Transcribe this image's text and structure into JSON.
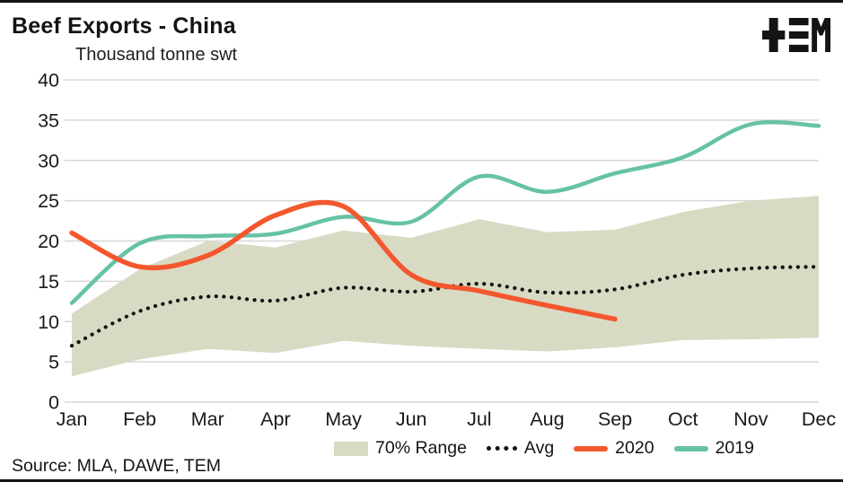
{
  "header": {
    "title": "Beef Exports - China",
    "subtitle": "Thousand tonne swt",
    "logo": "TEM"
  },
  "footer": {
    "source": "Source: MLA, DAWE, TEM"
  },
  "chart_data": {
    "type": "line",
    "title": "Beef Exports - China",
    "ylabel": "Thousand tonne swt",
    "categories": [
      "Jan",
      "Feb",
      "Mar",
      "Apr",
      "May",
      "Jun",
      "Jul",
      "Aug",
      "Sep",
      "Oct",
      "Nov",
      "Dec"
    ],
    "ylim": [
      0,
      40
    ],
    "yticks": [
      0,
      5,
      10,
      15,
      20,
      25,
      30,
      35,
      40
    ],
    "grid": true,
    "legend_position": "bottom",
    "colors": {
      "band": "#d9dac4",
      "avg": "#111111",
      "y2020": "#f4572e",
      "y2019": "#66c2a5",
      "gridline": "#d7d7d7"
    },
    "series": [
      {
        "name": "70% Range",
        "type": "band",
        "color": "#d9dac4",
        "upper": [
          11.0,
          16.5,
          20.0,
          19.2,
          21.3,
          20.4,
          22.7,
          21.1,
          21.4,
          23.6,
          25.0,
          25.6
        ],
        "lower": [
          3.2,
          5.3,
          6.6,
          6.1,
          7.6,
          7.0,
          6.6,
          6.3,
          6.8,
          7.7,
          7.8,
          8.0
        ]
      },
      {
        "name": "Avg",
        "type": "line",
        "style": "dotted",
        "color": "#111111",
        "values": [
          7.0,
          11.3,
          13.1,
          12.6,
          14.2,
          13.7,
          14.7,
          13.6,
          14.0,
          15.8,
          16.6,
          16.8
        ]
      },
      {
        "name": "2019",
        "type": "line",
        "style": "solid",
        "color": "#66c2a5",
        "values": [
          12.3,
          19.7,
          20.6,
          20.9,
          23.0,
          22.4,
          28.0,
          26.1,
          28.4,
          30.4,
          34.5,
          34.3
        ]
      },
      {
        "name": "2020",
        "type": "line",
        "style": "solid",
        "color": "#f4572e",
        "values": [
          21.0,
          16.8,
          18.2,
          23.2,
          24.3,
          15.8,
          13.8,
          12.0,
          10.3,
          null,
          null,
          null
        ]
      }
    ]
  }
}
